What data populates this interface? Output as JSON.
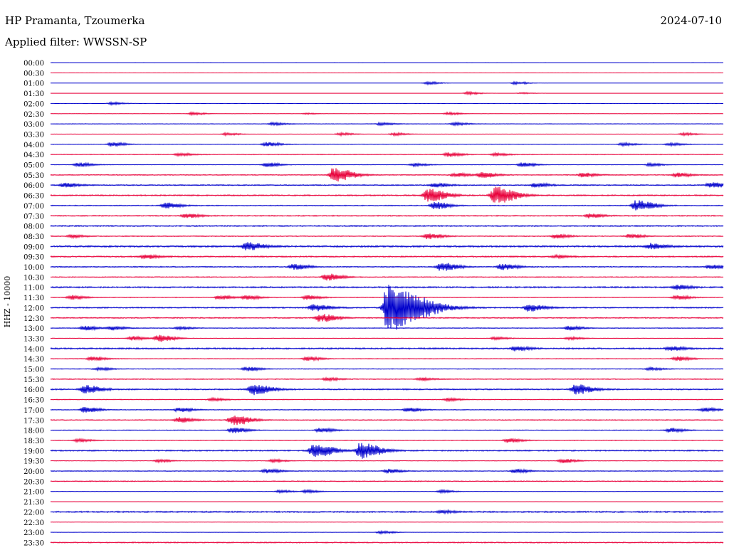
{
  "header": {
    "station": "HP Pramanta, Tzoumerka",
    "date": "2024-07-10",
    "filter_label": "Applied filter:",
    "filter_value": "WWSSN-SP"
  },
  "chart_data": {
    "type": "helicorder",
    "title": "HP Pramanta, Tzoumerka",
    "date": "2024-07-10",
    "filter": "WWSSN-SP",
    "ylabel": "HHZ - 10000",
    "colors": [
      "#0000cc",
      "#e8003a"
    ],
    "traces": [
      {
        "label": "00:00",
        "activity": 0.05,
        "events": []
      },
      {
        "label": "00:30",
        "activity": 0.05,
        "events": []
      },
      {
        "label": "01:00",
        "activity": 0.08,
        "events": [
          {
            "x": 0.56,
            "amp": 2
          },
          {
            "x": 0.69,
            "amp": 2
          }
        ]
      },
      {
        "label": "01:30",
        "activity": 0.08,
        "events": [
          {
            "x": 0.62,
            "amp": 2
          },
          {
            "x": 0.7,
            "amp": 1
          }
        ]
      },
      {
        "label": "02:00",
        "activity": 0.05,
        "events": [
          {
            "x": 0.09,
            "amp": 2
          }
        ]
      },
      {
        "label": "02:30",
        "activity": 0.1,
        "events": [
          {
            "x": 0.21,
            "amp": 2
          },
          {
            "x": 0.38,
            "amp": 1
          },
          {
            "x": 0.59,
            "amp": 2
          }
        ]
      },
      {
        "label": "03:00",
        "activity": 0.3,
        "events": [
          {
            "x": 0.33,
            "amp": 2
          },
          {
            "x": 0.49,
            "amp": 2
          },
          {
            "x": 0.6,
            "amp": 2
          }
        ]
      },
      {
        "label": "03:30",
        "activity": 0.15,
        "events": [
          {
            "x": 0.26,
            "amp": 2
          },
          {
            "x": 0.43,
            "amp": 2
          },
          {
            "x": 0.51,
            "amp": 2
          },
          {
            "x": 0.94,
            "amp": 2
          }
        ]
      },
      {
        "label": "04:00",
        "activity": 0.3,
        "events": [
          {
            "x": 0.09,
            "amp": 3
          },
          {
            "x": 0.32,
            "amp": 3
          },
          {
            "x": 0.85,
            "amp": 2
          },
          {
            "x": 0.92,
            "amp": 2
          }
        ]
      },
      {
        "label": "04:30",
        "activity": 0.4,
        "events": [
          {
            "x": 0.19,
            "amp": 2
          },
          {
            "x": 0.59,
            "amp": 3
          },
          {
            "x": 0.66,
            "amp": 2
          }
        ]
      },
      {
        "label": "05:00",
        "activity": 0.3,
        "events": [
          {
            "x": 0.04,
            "amp": 3
          },
          {
            "x": 0.32,
            "amp": 3
          },
          {
            "x": 0.54,
            "amp": 2
          },
          {
            "x": 0.7,
            "amp": 3
          },
          {
            "x": 0.89,
            "amp": 2
          }
        ]
      },
      {
        "label": "05:30",
        "activity": 0.5,
        "events": [
          {
            "x": 0.42,
            "amp": 10
          },
          {
            "x": 0.6,
            "amp": 3
          },
          {
            "x": 0.64,
            "amp": 4
          },
          {
            "x": 0.79,
            "amp": 3
          },
          {
            "x": 0.93,
            "amp": 3
          }
        ]
      },
      {
        "label": "06:00",
        "activity": 0.6,
        "events": [
          {
            "x": 0.02,
            "amp": 3
          },
          {
            "x": 0.57,
            "amp": 3
          },
          {
            "x": 0.72,
            "amp": 3
          },
          {
            "x": 0.98,
            "amp": 4
          }
        ]
      },
      {
        "label": "06:30",
        "activity": 0.7,
        "events": [
          {
            "x": 0.56,
            "amp": 9
          },
          {
            "x": 0.66,
            "amp": 12
          }
        ]
      },
      {
        "label": "07:00",
        "activity": 0.5,
        "events": [
          {
            "x": 0.17,
            "amp": 4
          },
          {
            "x": 0.57,
            "amp": 5
          },
          {
            "x": 0.87,
            "amp": 8
          }
        ]
      },
      {
        "label": "07:30",
        "activity": 0.6,
        "events": [
          {
            "x": 0.2,
            "amp": 3
          },
          {
            "x": 0.8,
            "amp": 3
          }
        ]
      },
      {
        "label": "08:00",
        "activity": 0.7,
        "events": []
      },
      {
        "label": "08:30",
        "activity": 0.5,
        "events": [
          {
            "x": 0.03,
            "amp": 2
          },
          {
            "x": 0.56,
            "amp": 4
          },
          {
            "x": 0.75,
            "amp": 3
          },
          {
            "x": 0.86,
            "amp": 3
          }
        ]
      },
      {
        "label": "09:00",
        "activity": 0.9,
        "events": [
          {
            "x": 0.29,
            "amp": 6
          },
          {
            "x": 0.89,
            "amp": 4
          }
        ]
      },
      {
        "label": "09:30",
        "activity": 0.7,
        "events": [
          {
            "x": 0.14,
            "amp": 3
          },
          {
            "x": 0.75,
            "amp": 2
          }
        ]
      },
      {
        "label": "10:00",
        "activity": 0.6,
        "events": [
          {
            "x": 0.36,
            "amp": 4
          },
          {
            "x": 0.58,
            "amp": 6
          },
          {
            "x": 0.67,
            "amp": 4
          },
          {
            "x": 0.98,
            "amp": 3
          }
        ]
      },
      {
        "label": "10:30",
        "activity": 0.5,
        "events": [
          {
            "x": 0.41,
            "amp": 5
          }
        ]
      },
      {
        "label": "11:00",
        "activity": 0.8,
        "events": [
          {
            "x": 0.93,
            "amp": 3
          }
        ]
      },
      {
        "label": "11:30",
        "activity": 0.4,
        "events": [
          {
            "x": 0.03,
            "amp": 3
          },
          {
            "x": 0.25,
            "amp": 3
          },
          {
            "x": 0.29,
            "amp": 3
          },
          {
            "x": 0.38,
            "amp": 3
          },
          {
            "x": 0.93,
            "amp": 3
          }
        ]
      },
      {
        "label": "12:00",
        "activity": 0.7,
        "events": [
          {
            "x": 0.39,
            "amp": 5
          },
          {
            "x": 0.5,
            "amp": 34
          },
          {
            "x": 0.71,
            "amp": 5
          }
        ]
      },
      {
        "label": "12:30",
        "activity": 0.6,
        "events": [
          {
            "x": 0.4,
            "amp": 6
          }
        ]
      },
      {
        "label": "13:00",
        "activity": 0.4,
        "events": [
          {
            "x": 0.05,
            "amp": 3
          },
          {
            "x": 0.09,
            "amp": 3
          },
          {
            "x": 0.19,
            "amp": 2
          },
          {
            "x": 0.77,
            "amp": 3
          }
        ]
      },
      {
        "label": "13:30",
        "activity": 0.3,
        "events": [
          {
            "x": 0.12,
            "amp": 3
          },
          {
            "x": 0.16,
            "amp": 5
          },
          {
            "x": 0.66,
            "amp": 2
          },
          {
            "x": 0.77,
            "amp": 2
          }
        ]
      },
      {
        "label": "14:00",
        "activity": 0.8,
        "events": [
          {
            "x": 0.69,
            "amp": 3
          },
          {
            "x": 0.92,
            "amp": 3
          }
        ]
      },
      {
        "label": "14:30",
        "activity": 0.4,
        "events": [
          {
            "x": 0.06,
            "amp": 3
          },
          {
            "x": 0.38,
            "amp": 3
          },
          {
            "x": 0.93,
            "amp": 3
          }
        ]
      },
      {
        "label": "15:00",
        "activity": 0.4,
        "events": [
          {
            "x": 0.07,
            "amp": 2
          },
          {
            "x": 0.29,
            "amp": 3
          },
          {
            "x": 0.89,
            "amp": 2
          }
        ]
      },
      {
        "label": "15:30",
        "activity": 0.5,
        "events": [
          {
            "x": 0.41,
            "amp": 2
          },
          {
            "x": 0.55,
            "amp": 2
          }
        ]
      },
      {
        "label": "16:00",
        "activity": 0.7,
        "events": [
          {
            "x": 0.05,
            "amp": 6
          },
          {
            "x": 0.3,
            "amp": 8
          },
          {
            "x": 0.78,
            "amp": 7
          }
        ]
      },
      {
        "label": "16:30",
        "activity": 0.4,
        "events": [
          {
            "x": 0.24,
            "amp": 2
          },
          {
            "x": 0.59,
            "amp": 2
          }
        ]
      },
      {
        "label": "17:00",
        "activity": 0.4,
        "events": [
          {
            "x": 0.05,
            "amp": 4
          },
          {
            "x": 0.19,
            "amp": 3
          },
          {
            "x": 0.53,
            "amp": 3
          },
          {
            "x": 0.97,
            "amp": 3
          }
        ]
      },
      {
        "label": "17:30",
        "activity": 0.5,
        "events": [
          {
            "x": 0.19,
            "amp": 4
          },
          {
            "x": 0.27,
            "amp": 8
          }
        ]
      },
      {
        "label": "18:00",
        "activity": 0.4,
        "events": [
          {
            "x": 0.27,
            "amp": 4
          },
          {
            "x": 0.4,
            "amp": 3
          },
          {
            "x": 0.92,
            "amp": 3
          }
        ]
      },
      {
        "label": "18:30",
        "activity": 0.4,
        "events": [
          {
            "x": 0.04,
            "amp": 2
          },
          {
            "x": 0.68,
            "amp": 3
          }
        ]
      },
      {
        "label": "19:00",
        "activity": 0.7,
        "events": [
          {
            "x": 0.39,
            "amp": 10
          },
          {
            "x": 0.46,
            "amp": 11
          }
        ]
      },
      {
        "label": "19:30",
        "activity": 0.3,
        "events": [
          {
            "x": 0.16,
            "amp": 2
          },
          {
            "x": 0.33,
            "amp": 2
          },
          {
            "x": 0.76,
            "amp": 3
          }
        ]
      },
      {
        "label": "20:00",
        "activity": 0.4,
        "events": [
          {
            "x": 0.32,
            "amp": 3
          },
          {
            "x": 0.5,
            "amp": 3
          },
          {
            "x": 0.69,
            "amp": 3
          }
        ]
      },
      {
        "label": "20:30",
        "activity": 0.5,
        "events": []
      },
      {
        "label": "21:00",
        "activity": 0.2,
        "events": [
          {
            "x": 0.34,
            "amp": 2
          },
          {
            "x": 0.38,
            "amp": 2
          },
          {
            "x": 0.58,
            "amp": 2
          }
        ]
      },
      {
        "label": "21:30",
        "activity": 0.1,
        "events": []
      },
      {
        "label": "22:00",
        "activity": 0.8,
        "events": [
          {
            "x": 0.58,
            "amp": 2
          }
        ]
      },
      {
        "label": "22:30",
        "activity": 0.2,
        "events": []
      },
      {
        "label": "23:00",
        "activity": 0.2,
        "events": [
          {
            "x": 0.49,
            "amp": 2
          }
        ]
      },
      {
        "label": "23:30",
        "activity": 0.6,
        "events": []
      }
    ]
  }
}
